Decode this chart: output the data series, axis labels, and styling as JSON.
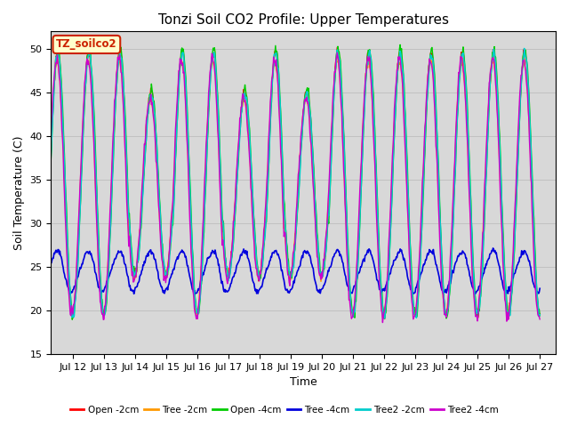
{
  "title": "Tonzi Soil CO2 Profile: Upper Temperatures",
  "xlabel": "Time",
  "ylabel": "Soil Temperature (C)",
  "ylim": [
    15,
    52
  ],
  "yticks": [
    15,
    20,
    25,
    30,
    35,
    40,
    45,
    50
  ],
  "xtick_labels": [
    "Jul 12",
    "Jul 13",
    "Jul 14",
    "Jul 15",
    "Jul 16",
    "Jul 17",
    "Jul 18",
    "Jul 19",
    "Jul 20",
    "Jul 21",
    "Jul 22",
    "Jul 23",
    "Jul 24",
    "Jul 25",
    "Jul 26",
    "Jul 27"
  ],
  "legend_labels": [
    "Open -2cm",
    "Tree -2cm",
    "Open -4cm",
    "Tree -4cm",
    "Tree2 -2cm",
    "Tree2 -4cm"
  ],
  "series_colors": [
    "#ff0000",
    "#ff9900",
    "#00cc00",
    "#0000dd",
    "#00cccc",
    "#cc00cc"
  ],
  "watermark_text": "TZ_soilco2",
  "watermark_color": "#cc2200",
  "watermark_bg": "#ffffcc",
  "plot_bg_color": "#d8d8d8",
  "fig_bg_color": "#ffffff",
  "title_fontsize": 11,
  "axis_label_fontsize": 9,
  "tick_fontsize": 8
}
